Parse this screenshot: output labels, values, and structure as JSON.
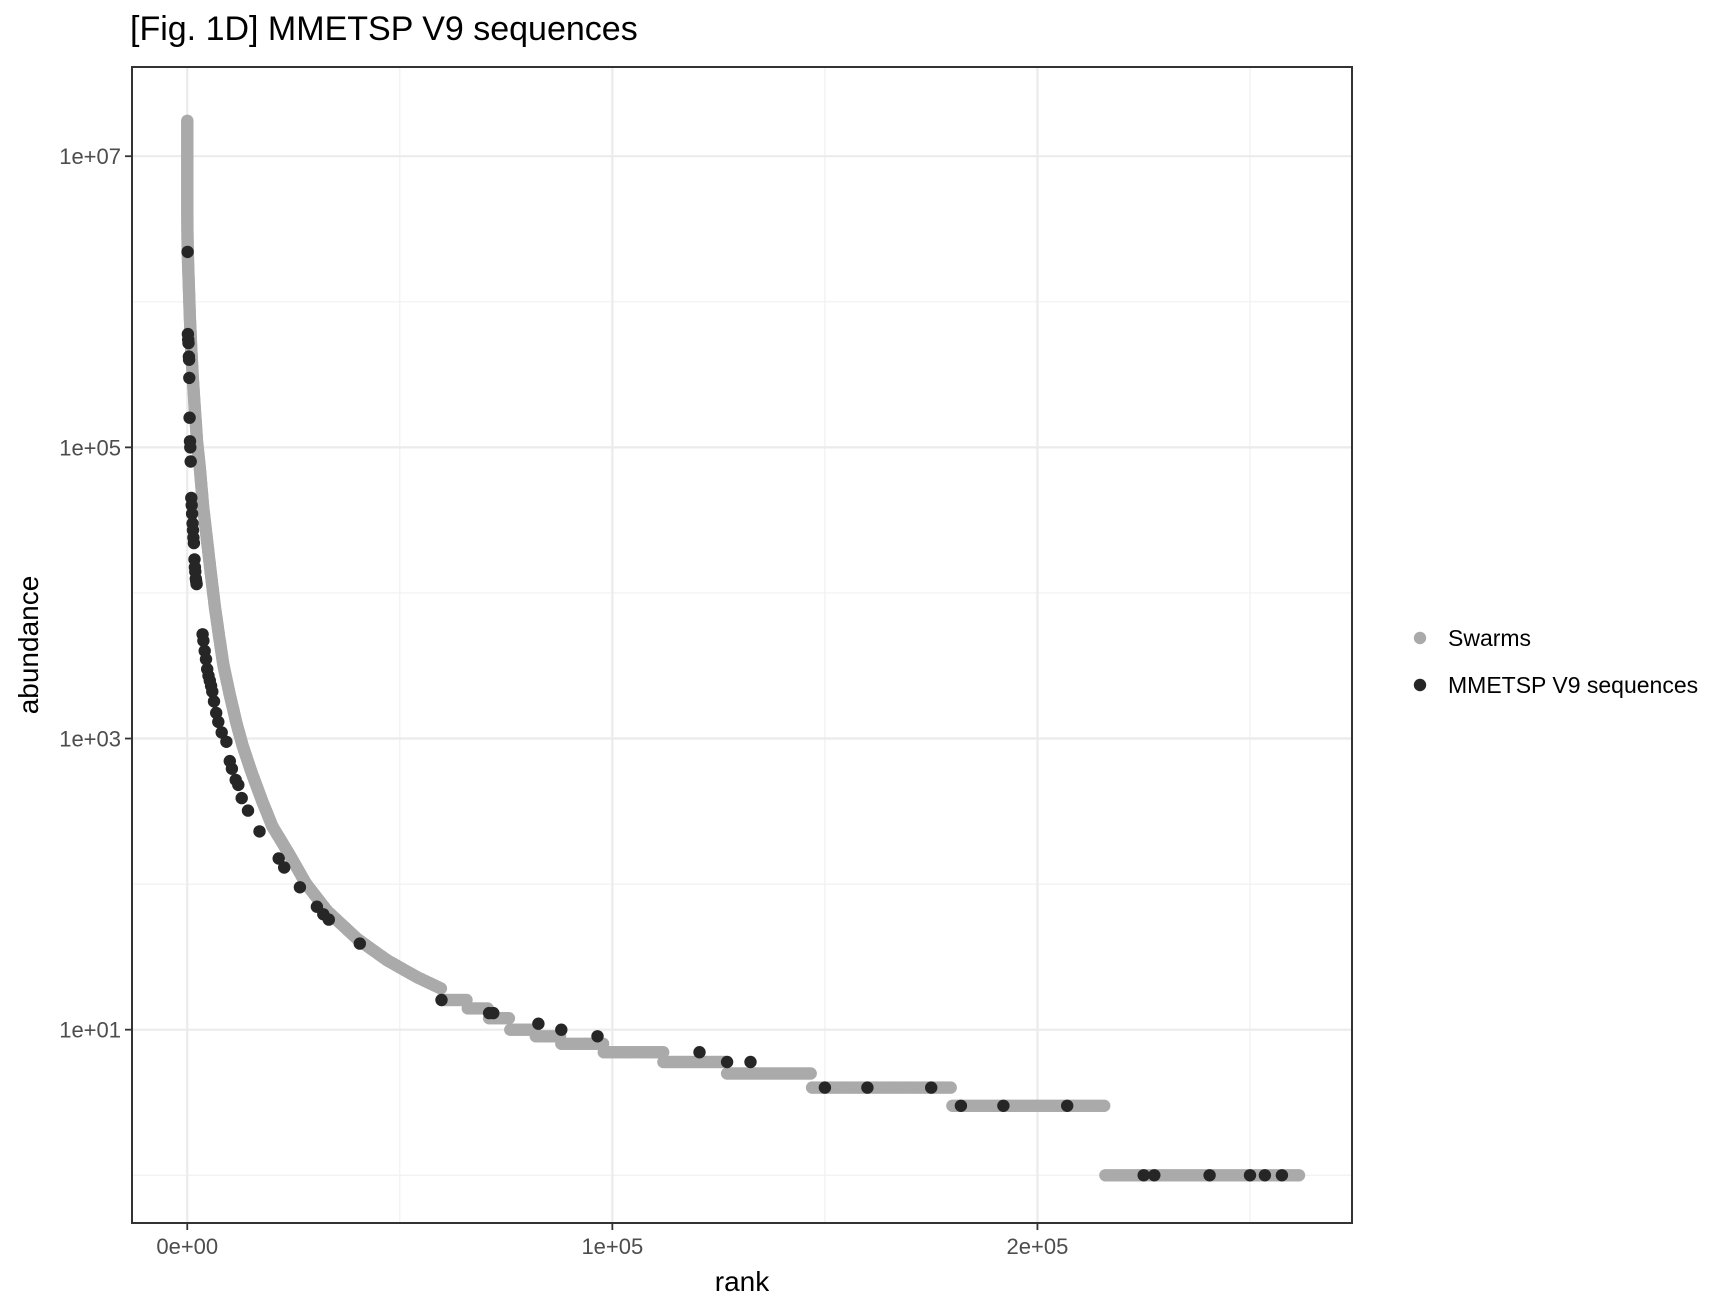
{
  "chart_data": {
    "type": "scatter",
    "title": "[Fig. 1D] MMETSP V9 sequences",
    "xlabel": "rank",
    "ylabel": "abundance",
    "x_scale": "linear",
    "y_scale": "log10",
    "xlim": [
      -13000,
      274000
    ],
    "ylim": [
      0.47,
      41000000
    ],
    "x_ticks": [
      {
        "value": 0,
        "label": "0e+00"
      },
      {
        "value": 100000,
        "label": "1e+05"
      },
      {
        "value": 200000,
        "label": "2e+05"
      }
    ],
    "y_ticks": [
      {
        "value": 10,
        "label": "1e+01"
      },
      {
        "value": 1000,
        "label": "1e+03"
      },
      {
        "value": 100000,
        "label": "1e+05"
      },
      {
        "value": 10000000,
        "label": "1e+07"
      }
    ],
    "grid": true,
    "legend_position": "right",
    "legend": [
      {
        "label": "Swarms",
        "color": "#aaaaaa"
      },
      {
        "label": "MMETSP V9 sequences",
        "color": "#262626"
      }
    ],
    "series": [
      {
        "name": "Swarms",
        "color": "#aaaaaa",
        "curve": [
          [
            1,
            17500000
          ],
          [
            3,
            7200000
          ],
          [
            10,
            4700000
          ],
          [
            30,
            3200000
          ],
          [
            80,
            2500000
          ],
          [
            200,
            1800000
          ],
          [
            400,
            1200000
          ],
          [
            600,
            800000
          ],
          [
            900,
            500000
          ],
          [
            1300,
            300000
          ],
          [
            1800,
            180000
          ],
          [
            2300,
            110000
          ],
          [
            3000,
            70000
          ],
          [
            3700,
            40000
          ],
          [
            4500,
            25000
          ],
          [
            5500,
            14000
          ],
          [
            6500,
            8000
          ],
          [
            7500,
            5000
          ],
          [
            8500,
            3200
          ],
          [
            10000,
            2000
          ],
          [
            11500,
            1300
          ],
          [
            13000,
            900
          ],
          [
            15000,
            600
          ],
          [
            17500,
            380
          ],
          [
            20000,
            250
          ],
          [
            24000,
            160
          ],
          [
            28000,
            100
          ],
          [
            33000,
            65
          ],
          [
            40000,
            42
          ],
          [
            47000,
            30
          ],
          [
            54000,
            23
          ],
          [
            60000,
            19
          ]
        ],
        "plateaus": [
          {
            "x_start": 60000,
            "x_end": 66000,
            "y": 16
          },
          {
            "x_start": 66000,
            "x_end": 71000,
            "y": 14
          },
          {
            "x_start": 71000,
            "x_end": 76000,
            "y": 12
          },
          {
            "x_start": 76000,
            "x_end": 82000,
            "y": 10
          },
          {
            "x_start": 82000,
            "x_end": 88000,
            "y": 9
          },
          {
            "x_start": 88000,
            "x_end": 98000,
            "y": 8
          },
          {
            "x_start": 98000,
            "x_end": 112000,
            "y": 7
          },
          {
            "x_start": 112000,
            "x_end": 127000,
            "y": 6
          },
          {
            "x_start": 127000,
            "x_end": 147000,
            "y": 5
          },
          {
            "x_start": 147000,
            "x_end": 180000,
            "y": 4
          },
          {
            "x_start": 180000,
            "x_end": 216000,
            "y": 3
          },
          {
            "x_start": 216000,
            "x_end": 262000,
            "y": 1
          }
        ]
      },
      {
        "name": "MMETSP V9 sequences",
        "color": "#262626",
        "points": [
          [
            80,
            2200000
          ],
          [
            160,
            600000
          ],
          [
            230,
            550000
          ],
          [
            300,
            520000
          ],
          [
            380,
            420000
          ],
          [
            430,
            400000
          ],
          [
            480,
            300000
          ],
          [
            560,
            160000
          ],
          [
            640,
            110000
          ],
          [
            720,
            100000
          ],
          [
            800,
            80000
          ],
          [
            950,
            45000
          ],
          [
            1050,
            40000
          ],
          [
            1150,
            35000
          ],
          [
            1250,
            30000
          ],
          [
            1350,
            27000
          ],
          [
            1450,
            24000
          ],
          [
            1550,
            22000
          ],
          [
            1700,
            17000
          ],
          [
            1800,
            15000
          ],
          [
            1900,
            14000
          ],
          [
            2000,
            12500
          ],
          [
            2100,
            12000
          ],
          [
            2200,
            11500
          ],
          [
            3600,
            5200
          ],
          [
            3800,
            4700
          ],
          [
            4100,
            4000
          ],
          [
            4400,
            3500
          ],
          [
            4700,
            3000
          ],
          [
            5000,
            2700
          ],
          [
            5300,
            2500
          ],
          [
            5600,
            2300
          ],
          [
            5900,
            2100
          ],
          [
            6300,
            1800
          ],
          [
            6800,
            1500
          ],
          [
            7300,
            1300
          ],
          [
            8100,
            1100
          ],
          [
            9200,
            950
          ],
          [
            10000,
            700
          ],
          [
            10500,
            620
          ],
          [
            11400,
            520
          ],
          [
            12000,
            480
          ],
          [
            12800,
            390
          ],
          [
            14300,
            320
          ],
          [
            17000,
            230
          ],
          [
            21500,
            150
          ],
          [
            22800,
            130
          ],
          [
            26500,
            95
          ],
          [
            30500,
            70
          ],
          [
            32000,
            62
          ],
          [
            33300,
            57
          ],
          [
            40600,
            39
          ],
          [
            59800,
            16
          ],
          [
            71000,
            13
          ],
          [
            72000,
            13
          ],
          [
            82600,
            11
          ],
          [
            88000,
            10
          ],
          [
            96500,
            9
          ],
          [
            120500,
            7
          ],
          [
            127000,
            6
          ],
          [
            132500,
            6
          ],
          [
            150000,
            4
          ],
          [
            160000,
            4
          ],
          [
            175000,
            4
          ],
          [
            182000,
            3
          ],
          [
            192000,
            3
          ],
          [
            207000,
            3
          ],
          [
            225000,
            1
          ],
          [
            227500,
            1
          ],
          [
            240500,
            1
          ],
          [
            250000,
            1
          ],
          [
            253500,
            1
          ],
          [
            257500,
            1
          ]
        ]
      }
    ]
  }
}
